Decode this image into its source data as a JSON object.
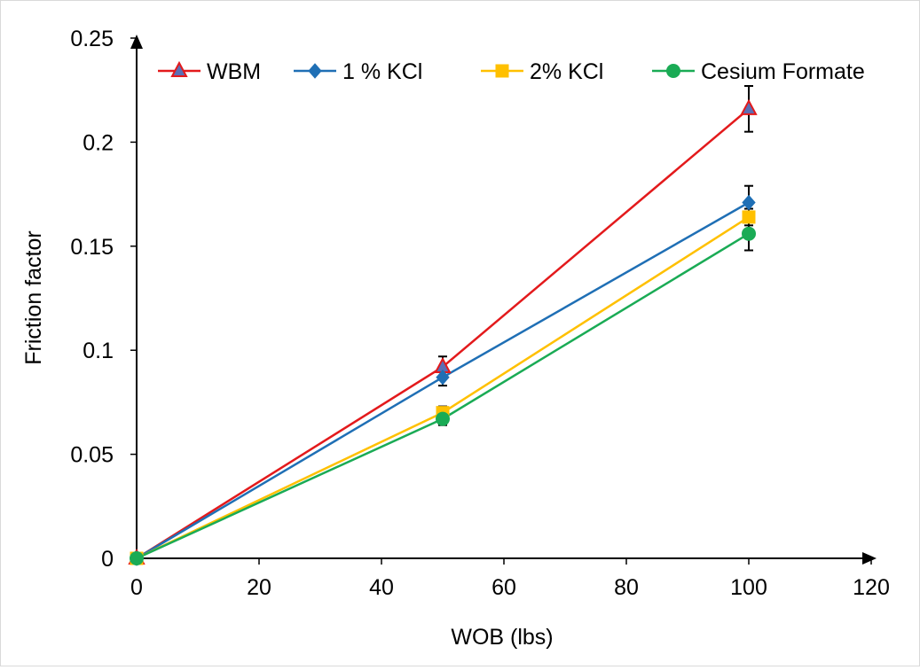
{
  "chart_data": {
    "type": "line",
    "title": "",
    "xlabel": "WOB (lbs)",
    "ylabel": "Friction factor",
    "xlim": [
      0,
      120
    ],
    "ylim": [
      0,
      0.25
    ],
    "x_ticks": [
      "0",
      "20",
      "40",
      "60",
      "80",
      "100",
      "120"
    ],
    "y_ticks": [
      "0",
      "0.05",
      "0.1",
      "0.15",
      "0.2",
      "0.25"
    ],
    "x_tick_values": [
      0,
      20,
      40,
      60,
      80,
      100,
      120
    ],
    "y_tick_values": [
      0,
      0.05,
      0.1,
      0.15,
      0.2,
      0.25
    ],
    "grid": false,
    "legend_position": "top",
    "series": [
      {
        "name": "WBM",
        "color": "#e31a1c",
        "marker": "triangle",
        "marker_fill": "#5b6fb5",
        "x": [
          0,
          50,
          100
        ],
        "y": [
          0,
          0.092,
          0.216
        ],
        "error": [
          0,
          0.005,
          0.011
        ]
      },
      {
        "name": "1 % KCl",
        "color": "#1f6fb5",
        "marker": "diamond",
        "marker_fill": "#1f6fb5",
        "x": [
          0,
          50,
          100
        ],
        "y": [
          0,
          0.087,
          0.171
        ],
        "error": [
          0,
          0.004,
          0.008
        ]
      },
      {
        "name": "2% KCl",
        "color": "#ffc000",
        "marker": "square",
        "marker_fill": "#ffc000",
        "x": [
          0,
          50,
          100
        ],
        "y": [
          0,
          0.07,
          0.164
        ],
        "error": [
          0,
          0.003,
          0.004
        ]
      },
      {
        "name": "Cesium Formate",
        "color": "#1aab55",
        "marker": "circle",
        "marker_fill": "#1aab55",
        "x": [
          0,
          50,
          100
        ],
        "y": [
          0,
          0.067,
          0.156
        ],
        "error": [
          0,
          0.003,
          0.008
        ]
      }
    ]
  }
}
